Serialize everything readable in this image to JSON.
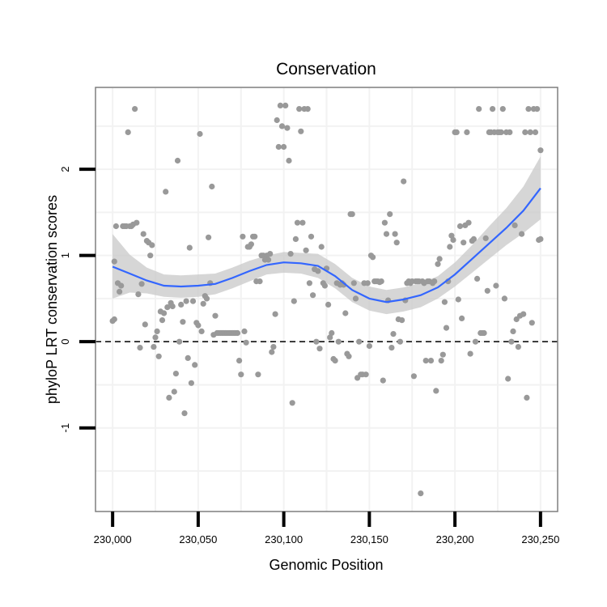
{
  "chart_data": {
    "type": "scatter",
    "title": "Conservation",
    "xlabel": "Genomic Position",
    "ylabel": "phyloP LRT conservation scores",
    "xlim": [
      229990,
      230260
    ],
    "ylim": [
      -1.97,
      2.95
    ],
    "x_ticks": [
      {
        "value": 230000,
        "label": "230,000"
      },
      {
        "value": 230050,
        "label": "230,050"
      },
      {
        "value": 230100,
        "label": "230,100"
      },
      {
        "value": 230150,
        "label": "230,150"
      },
      {
        "value": 230200,
        "label": "230,200"
      },
      {
        "value": 230250,
        "label": "230,250"
      }
    ],
    "y_ticks": [
      {
        "value": -1,
        "label": "-1"
      },
      {
        "value": 0,
        "label": "0"
      },
      {
        "value": 1,
        "label": "1"
      },
      {
        "value": 2,
        "label": "2"
      }
    ],
    "reference_line": {
      "y": 0,
      "style": "dashed"
    },
    "grid": true,
    "points": [
      [
        230000,
        0.24
      ],
      [
        230001,
        0.26
      ],
      [
        230001,
        0.93
      ],
      [
        230002,
        1.34
      ],
      [
        230003,
        0.68
      ],
      [
        230004,
        0.58
      ],
      [
        230005,
        0.65
      ],
      [
        230006,
        1.34
      ],
      [
        230007,
        1.34
      ],
      [
        230008,
        1.34
      ],
      [
        230009,
        2.43
      ],
      [
        230010,
        1.34
      ],
      [
        230011,
        1.34
      ],
      [
        230012,
        1.36
      ],
      [
        230013,
        2.7
      ],
      [
        230014,
        1.38
      ],
      [
        230015,
        0.55
      ],
      [
        230016,
        -0.07
      ],
      [
        230017,
        0.67
      ],
      [
        230018,
        1.25
      ],
      [
        230019,
        0.2
      ],
      [
        230020,
        1.17
      ],
      [
        230021,
        1.15
      ],
      [
        230022,
        1.0
      ],
      [
        230023,
        1.12
      ],
      [
        230024,
        -0.06
      ],
      [
        230025,
        0.05
      ],
      [
        230026,
        0.12
      ],
      [
        230027,
        -0.17
      ],
      [
        230028,
        0.35
      ],
      [
        230029,
        0.25
      ],
      [
        230030,
        0.33
      ],
      [
        230031,
        1.74
      ],
      [
        230032,
        0.4
      ],
      [
        230033,
        -0.65
      ],
      [
        230034,
        0.45
      ],
      [
        230035,
        0.41
      ],
      [
        230036,
        -0.58
      ],
      [
        230037,
        -0.37
      ],
      [
        230038,
        2.1
      ],
      [
        230039,
        0.0
      ],
      [
        230040,
        0.43
      ],
      [
        230041,
        0.23
      ],
      [
        230042,
        -0.83
      ],
      [
        230043,
        0.47
      ],
      [
        230044,
        -0.19
      ],
      [
        230045,
        1.09
      ],
      [
        230046,
        -0.48
      ],
      [
        230047,
        0.47
      ],
      [
        230048,
        -0.27
      ],
      [
        230049,
        0.22
      ],
      [
        230050,
        0.19
      ],
      [
        230051,
        2.41
      ],
      [
        230052,
        0.12
      ],
      [
        230053,
        0.44
      ],
      [
        230054,
        0.53
      ],
      [
        230055,
        0.5
      ],
      [
        230056,
        1.21
      ],
      [
        230057,
        0.68
      ],
      [
        230058,
        1.8
      ],
      [
        230059,
        0.08
      ],
      [
        230060,
        0.3
      ],
      [
        230061,
        0.1
      ],
      [
        230062,
        0.1
      ],
      [
        230063,
        0.1
      ],
      [
        230064,
        0.1
      ],
      [
        230065,
        0.1
      ],
      [
        230066,
        0.1
      ],
      [
        230067,
        0.1
      ],
      [
        230068,
        0.1
      ],
      [
        230069,
        0.1
      ],
      [
        230070,
        0.1
      ],
      [
        230071,
        0.1
      ],
      [
        230072,
        0.1
      ],
      [
        230073,
        0.1
      ],
      [
        230074,
        -0.22
      ],
      [
        230075,
        -0.38
      ],
      [
        230076,
        1.22
      ],
      [
        230077,
        0.12
      ],
      [
        230078,
        -0.01
      ],
      [
        230079,
        1.1
      ],
      [
        230080,
        1.1
      ],
      [
        230081,
        1.13
      ],
      [
        230082,
        1.22
      ],
      [
        230083,
        1.22
      ],
      [
        230084,
        0.7
      ],
      [
        230085,
        -0.38
      ],
      [
        230086,
        0.7
      ],
      [
        230087,
        1.0
      ],
      [
        230088,
        1.0
      ],
      [
        230089,
        0.95
      ],
      [
        230090,
        1.0
      ],
      [
        230091,
        0.95
      ],
      [
        230092,
        1.02
      ],
      [
        230093,
        -0.12
      ],
      [
        230094,
        -0.06
      ],
      [
        230095,
        0.32
      ],
      [
        230096,
        2.57
      ],
      [
        230097,
        2.26
      ],
      [
        230098,
        2.74
      ],
      [
        230099,
        2.5
      ],
      [
        230100,
        2.26
      ],
      [
        230101,
        2.74
      ],
      [
        230102,
        2.48
      ],
      [
        230103,
        2.1
      ],
      [
        230104,
        1.02
      ],
      [
        230105,
        -0.71
      ],
      [
        230106,
        0.47
      ],
      [
        230107,
        1.19
      ],
      [
        230108,
        1.38
      ],
      [
        230109,
        2.7
      ],
      [
        230110,
        2.44
      ],
      [
        230111,
        1.38
      ],
      [
        230112,
        2.7
      ],
      [
        230113,
        1.06
      ],
      [
        230114,
        2.7
      ],
      [
        230115,
        0.68
      ],
      [
        230116,
        1.22
      ],
      [
        230117,
        0.54
      ],
      [
        230118,
        0.84
      ],
      [
        230119,
        0.0
      ],
      [
        230120,
        0.82
      ],
      [
        230121,
        -0.08
      ],
      [
        230122,
        1.1
      ],
      [
        230123,
        0.68
      ],
      [
        230124,
        0.65
      ],
      [
        230125,
        0.85
      ],
      [
        230126,
        0.43
      ],
      [
        230127,
        0.05
      ],
      [
        230128,
        0.1
      ],
      [
        230129,
        -0.2
      ],
      [
        230130,
        -0.22
      ],
      [
        230131,
        0.68
      ],
      [
        230132,
        0.0
      ],
      [
        230133,
        0.66
      ],
      [
        230134,
        0.68
      ],
      [
        230135,
        0.66
      ],
      [
        230136,
        0.33
      ],
      [
        230137,
        -0.14
      ],
      [
        230138,
        -0.17
      ],
      [
        230139,
        1.48
      ],
      [
        230140,
        1.48
      ],
      [
        230141,
        0.68
      ],
      [
        230142,
        0.5
      ],
      [
        230143,
        -0.42
      ],
      [
        230144,
        0.0
      ],
      [
        230145,
        -0.38
      ],
      [
        230146,
        -0.38
      ],
      [
        230147,
        0.68
      ],
      [
        230148,
        -0.38
      ],
      [
        230149,
        0.68
      ],
      [
        230150,
        -0.05
      ],
      [
        230151,
        1.0
      ],
      [
        230152,
        0.98
      ],
      [
        230153,
        0.7
      ],
      [
        230154,
        0.7
      ],
      [
        230155,
        0.7
      ],
      [
        230156,
        0.69
      ],
      [
        230157,
        0.7
      ],
      [
        230158,
        -0.45
      ],
      [
        230159,
        1.38
      ],
      [
        230160,
        1.25
      ],
      [
        230161,
        0.48
      ],
      [
        230162,
        1.48
      ],
      [
        230163,
        -0.07
      ],
      [
        230164,
        0.09
      ],
      [
        230165,
        1.25
      ],
      [
        230166,
        1.15
      ],
      [
        230167,
        0.26
      ],
      [
        230168,
        0.0
      ],
      [
        230169,
        0.25
      ],
      [
        230170,
        1.86
      ],
      [
        230171,
        0.48
      ],
      [
        230172,
        0.68
      ],
      [
        230173,
        0.7
      ],
      [
        230174,
        0.68
      ],
      [
        230175,
        0.7
      ],
      [
        230176,
        -0.4
      ],
      [
        230177,
        0.7
      ],
      [
        230178,
        0.7
      ],
      [
        230179,
        0.7
      ],
      [
        230180,
        -1.76
      ],
      [
        230181,
        0.7
      ],
      [
        230182,
        0.68
      ],
      [
        230183,
        -0.22
      ],
      [
        230184,
        0.7
      ],
      [
        230185,
        0.7
      ],
      [
        230186,
        -0.22
      ],
      [
        230187,
        0.68
      ],
      [
        230188,
        0.7
      ],
      [
        230189,
        -0.57
      ],
      [
        230190,
        0.9
      ],
      [
        230191,
        0.96
      ],
      [
        230192,
        -0.22
      ],
      [
        230193,
        -0.15
      ],
      [
        230194,
        0.46
      ],
      [
        230195,
        0.16
      ],
      [
        230196,
        0.7
      ],
      [
        230197,
        1.1
      ],
      [
        230198,
        1.23
      ],
      [
        230199,
        1.18
      ],
      [
        230200,
        2.43
      ],
      [
        230201,
        2.43
      ],
      [
        230202,
        0.49
      ],
      [
        230203,
        1.34
      ],
      [
        230204,
        0.27
      ],
      [
        230205,
        1.15
      ],
      [
        230206,
        1.35
      ],
      [
        230207,
        2.43
      ],
      [
        230208,
        1.38
      ],
      [
        230209,
        -0.14
      ],
      [
        230210,
        1.17
      ],
      [
        230211,
        1.19
      ],
      [
        230212,
        0.0
      ],
      [
        230213,
        0.73
      ],
      [
        230214,
        2.7
      ],
      [
        230215,
        0.1
      ],
      [
        230216,
        0.1
      ],
      [
        230217,
        0.1
      ],
      [
        230218,
        1.2
      ],
      [
        230219,
        0.59
      ],
      [
        230220,
        2.43
      ],
      [
        230221,
        2.43
      ],
      [
        230222,
        2.7
      ],
      [
        230223,
        2.43
      ],
      [
        230224,
        0.65
      ],
      [
        230225,
        2.43
      ],
      [
        230226,
        2.43
      ],
      [
        230227,
        2.43
      ],
      [
        230228,
        2.7
      ],
      [
        230229,
        0.5
      ],
      [
        230230,
        2.43
      ],
      [
        230231,
        -0.43
      ],
      [
        230232,
        2.43
      ],
      [
        230233,
        0.0
      ],
      [
        230234,
        0.12
      ],
      [
        230235,
        1.35
      ],
      [
        230236,
        0.26
      ],
      [
        230237,
        -0.06
      ],
      [
        230238,
        0.3
      ],
      [
        230239,
        1.25
      ],
      [
        230240,
        0.32
      ],
      [
        230241,
        2.43
      ],
      [
        230242,
        -0.65
      ],
      [
        230243,
        2.7
      ],
      [
        230244,
        2.43
      ],
      [
        230245,
        0.22
      ],
      [
        230246,
        2.7
      ],
      [
        230247,
        2.43
      ],
      [
        230248,
        2.7
      ],
      [
        230249,
        1.18
      ],
      [
        230250,
        2.22
      ],
      [
        230250,
        1.19
      ]
    ],
    "smooth": {
      "method": "loess",
      "x": [
        230000,
        230010,
        230020,
        230030,
        230040,
        230050,
        230060,
        230070,
        230080,
        230090,
        230100,
        230110,
        230120,
        230130,
        230140,
        230150,
        230160,
        230170,
        230180,
        230190,
        230200,
        230210,
        230220,
        230230,
        230240,
        230250
      ],
      "y": [
        0.87,
        0.79,
        0.71,
        0.65,
        0.64,
        0.65,
        0.67,
        0.74,
        0.82,
        0.89,
        0.92,
        0.91,
        0.88,
        0.76,
        0.6,
        0.5,
        0.46,
        0.49,
        0.54,
        0.63,
        0.78,
        0.96,
        1.14,
        1.32,
        1.52,
        1.78
      ],
      "lower": [
        0.5,
        0.57,
        0.56,
        0.52,
        0.51,
        0.52,
        0.55,
        0.62,
        0.7,
        0.78,
        0.8,
        0.79,
        0.74,
        0.62,
        0.46,
        0.36,
        0.32,
        0.35,
        0.4,
        0.5,
        0.64,
        0.8,
        0.96,
        1.12,
        1.26,
        1.42
      ],
      "upper": [
        1.25,
        1.01,
        0.86,
        0.78,
        0.77,
        0.78,
        0.79,
        0.86,
        0.94,
        1.0,
        1.04,
        1.03,
        1.02,
        0.9,
        0.74,
        0.64,
        0.6,
        0.63,
        0.68,
        0.76,
        0.92,
        1.12,
        1.34,
        1.55,
        1.8,
        2.15
      ]
    },
    "colors": {
      "points": "#999999",
      "smooth_line": "#3366ff",
      "ribbon": "#c8c8c8",
      "grid": "#f2f2f2",
      "panel_border": "#7f7f7f"
    }
  }
}
